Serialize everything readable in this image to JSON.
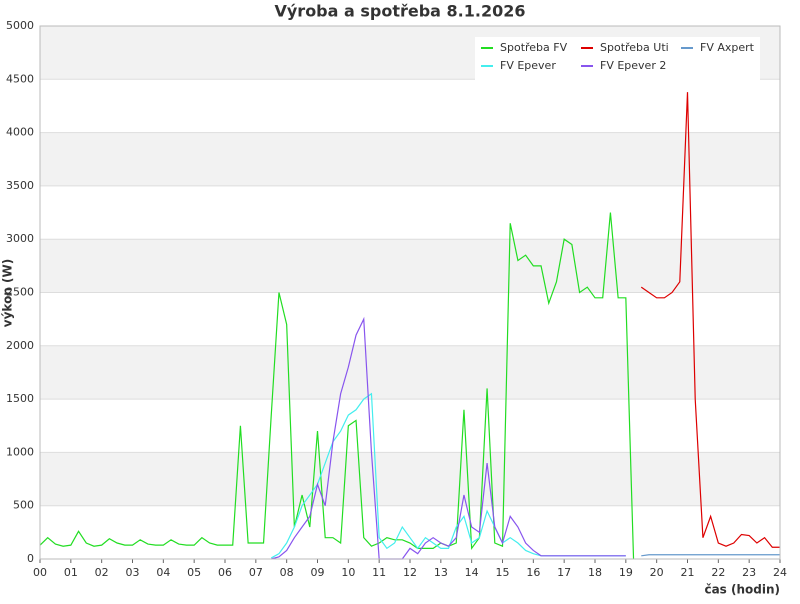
{
  "chart_data": {
    "type": "line",
    "title": "Výroba a spotřeba 8.1.2026",
    "xlabel": "čas (hodin)",
    "ylabel": "výkon (W)",
    "x": [
      0,
      0.25,
      0.5,
      0.75,
      1,
      1.25,
      1.5,
      1.75,
      2,
      2.25,
      2.5,
      2.75,
      3,
      3.25,
      3.5,
      3.75,
      4,
      4.25,
      4.5,
      4.75,
      5,
      5.25,
      5.5,
      5.75,
      6,
      6.25,
      6.5,
      6.75,
      7,
      7.25,
      7.5,
      7.75,
      8,
      8.25,
      8.5,
      8.75,
      9,
      9.25,
      9.5,
      9.75,
      10,
      10.25,
      10.5,
      10.75,
      11,
      11.25,
      11.5,
      11.75,
      12,
      12.25,
      12.5,
      12.75,
      13,
      13.25,
      13.5,
      13.75,
      14,
      14.25,
      14.5,
      14.75,
      15,
      15.25,
      15.5,
      15.75,
      16,
      16.25,
      16.5,
      16.75,
      17,
      17.25,
      17.5,
      17.75,
      18,
      18.25,
      18.5,
      18.75,
      19,
      19.25,
      19.5,
      19.75,
      20,
      20.25,
      20.5,
      20.75,
      21,
      21.25,
      21.5,
      21.75,
      22,
      22.25,
      22.5,
      22.75,
      23,
      23.25,
      23.5,
      23.75,
      24
    ],
    "series": [
      {
        "name": "Spotřeba FV",
        "color": "#22dd22",
        "values": [
          130,
          200,
          140,
          120,
          130,
          260,
          150,
          120,
          130,
          190,
          150,
          130,
          130,
          180,
          140,
          130,
          130,
          180,
          140,
          130,
          130,
          200,
          150,
          130,
          130,
          130,
          1250,
          150,
          150,
          150,
          1350,
          2500,
          2200,
          300,
          600,
          300,
          1200,
          200,
          200,
          150,
          1250,
          1300,
          200,
          120,
          150,
          200,
          180,
          180,
          150,
          100,
          100,
          100,
          150,
          120,
          150,
          1400,
          100,
          200,
          1600,
          150,
          120,
          3150,
          2800,
          2850,
          2750,
          2750,
          2400,
          2600,
          3000,
          2950,
          2500,
          2550,
          2450,
          2450,
          3250,
          2450,
          2450,
          0,
          null,
          null,
          null,
          null,
          null,
          null,
          null,
          null,
          null,
          null,
          null,
          null,
          null,
          null,
          null,
          null,
          null,
          null,
          null
        ]
      },
      {
        "name": "Spotřeba Uti",
        "color": "#dd0000",
        "values": [
          null,
          null,
          null,
          null,
          null,
          null,
          null,
          null,
          null,
          null,
          null,
          null,
          null,
          null,
          null,
          null,
          null,
          null,
          null,
          null,
          null,
          null,
          null,
          null,
          null,
          null,
          null,
          null,
          null,
          null,
          null,
          null,
          null,
          null,
          null,
          null,
          null,
          null,
          null,
          null,
          null,
          null,
          null,
          null,
          null,
          null,
          null,
          null,
          null,
          null,
          null,
          null,
          null,
          null,
          null,
          null,
          null,
          null,
          null,
          null,
          null,
          null,
          null,
          null,
          null,
          null,
          null,
          null,
          null,
          null,
          null,
          null,
          null,
          null,
          null,
          null,
          null,
          null,
          2550,
          2500,
          2450,
          2450,
          2500,
          2600,
          4380,
          1500,
          200,
          400,
          150,
          120,
          150,
          230,
          220,
          150,
          200,
          110,
          110
        ]
      },
      {
        "name": "FV Axpert",
        "color": "#6699cc",
        "values": [
          null,
          null,
          null,
          null,
          null,
          null,
          null,
          null,
          null,
          null,
          null,
          null,
          null,
          null,
          null,
          null,
          null,
          null,
          null,
          null,
          null,
          null,
          null,
          null,
          null,
          null,
          null,
          null,
          null,
          null,
          null,
          null,
          null,
          null,
          null,
          null,
          null,
          null,
          null,
          null,
          null,
          null,
          null,
          null,
          null,
          null,
          null,
          null,
          null,
          null,
          null,
          null,
          null,
          null,
          null,
          null,
          null,
          null,
          null,
          null,
          null,
          null,
          null,
          null,
          null,
          null,
          null,
          null,
          null,
          null,
          null,
          null,
          null,
          null,
          null,
          null,
          null,
          null,
          30,
          40,
          40,
          40,
          40,
          40,
          40,
          40,
          40,
          40,
          40,
          40,
          40,
          40,
          40,
          40,
          40,
          40,
          40
        ]
      },
      {
        "name": "FV Epever",
        "color": "#44eeee",
        "values": [
          null,
          null,
          null,
          null,
          null,
          null,
          null,
          null,
          null,
          null,
          null,
          null,
          null,
          null,
          null,
          null,
          null,
          null,
          null,
          null,
          null,
          null,
          null,
          null,
          null,
          null,
          null,
          null,
          null,
          null,
          10,
          50,
          150,
          300,
          500,
          600,
          700,
          900,
          1100,
          1200,
          1350,
          1400,
          1500,
          1550,
          200,
          100,
          150,
          300,
          200,
          100,
          200,
          150,
          100,
          100,
          300,
          400,
          150,
          200,
          450,
          300,
          150,
          200,
          150,
          80,
          50,
          30,
          30,
          30,
          30,
          30,
          30,
          30,
          30,
          30,
          30,
          30,
          30,
          null,
          null,
          null,
          null,
          null,
          null,
          null,
          null,
          null,
          null,
          null,
          null,
          null,
          null,
          null,
          null,
          null,
          null,
          null,
          null
        ]
      },
      {
        "name": "FV Epever 2",
        "color": "#8855ee",
        "values": [
          null,
          null,
          null,
          null,
          null,
          null,
          null,
          null,
          null,
          null,
          null,
          null,
          null,
          null,
          null,
          null,
          null,
          null,
          null,
          null,
          null,
          null,
          null,
          null,
          null,
          null,
          null,
          null,
          null,
          null,
          0,
          20,
          80,
          200,
          300,
          400,
          700,
          500,
          1100,
          1550,
          1800,
          2100,
          2250,
          1000,
          0,
          0,
          0,
          0,
          100,
          50,
          150,
          200,
          150,
          120,
          200,
          600,
          300,
          250,
          900,
          300,
          150,
          400,
          300,
          150,
          80,
          30,
          30,
          30,
          30,
          30,
          30,
          30,
          30,
          30,
          30,
          30,
          30,
          null,
          null,
          null,
          null,
          null,
          null,
          null,
          null,
          null,
          null,
          null,
          null,
          null,
          null,
          null,
          null,
          null,
          null,
          null,
          null
        ]
      }
    ],
    "xlim": [
      0,
      24
    ],
    "xticks": [
      {
        "value": 0,
        "label": "00"
      },
      {
        "value": 1,
        "label": "01"
      },
      {
        "value": 2,
        "label": "02"
      },
      {
        "value": 3,
        "label": "03"
      },
      {
        "value": 4,
        "label": "04"
      },
      {
        "value": 5,
        "label": "05"
      },
      {
        "value": 6,
        "label": "06"
      },
      {
        "value": 7,
        "label": "07"
      },
      {
        "value": 8,
        "label": "08"
      },
      {
        "value": 9,
        "label": "09"
      },
      10,
      11,
      12,
      13,
      14,
      15,
      16,
      17,
      18,
      19,
      20,
      21,
      22,
      23,
      24
    ],
    "ylim": [
      0,
      5000
    ],
    "yticks": [
      0,
      500,
      1000,
      1500,
      2000,
      2500,
      3000,
      3500,
      4000,
      4500,
      5000
    ],
    "grid": true,
    "legend": "upper right"
  }
}
